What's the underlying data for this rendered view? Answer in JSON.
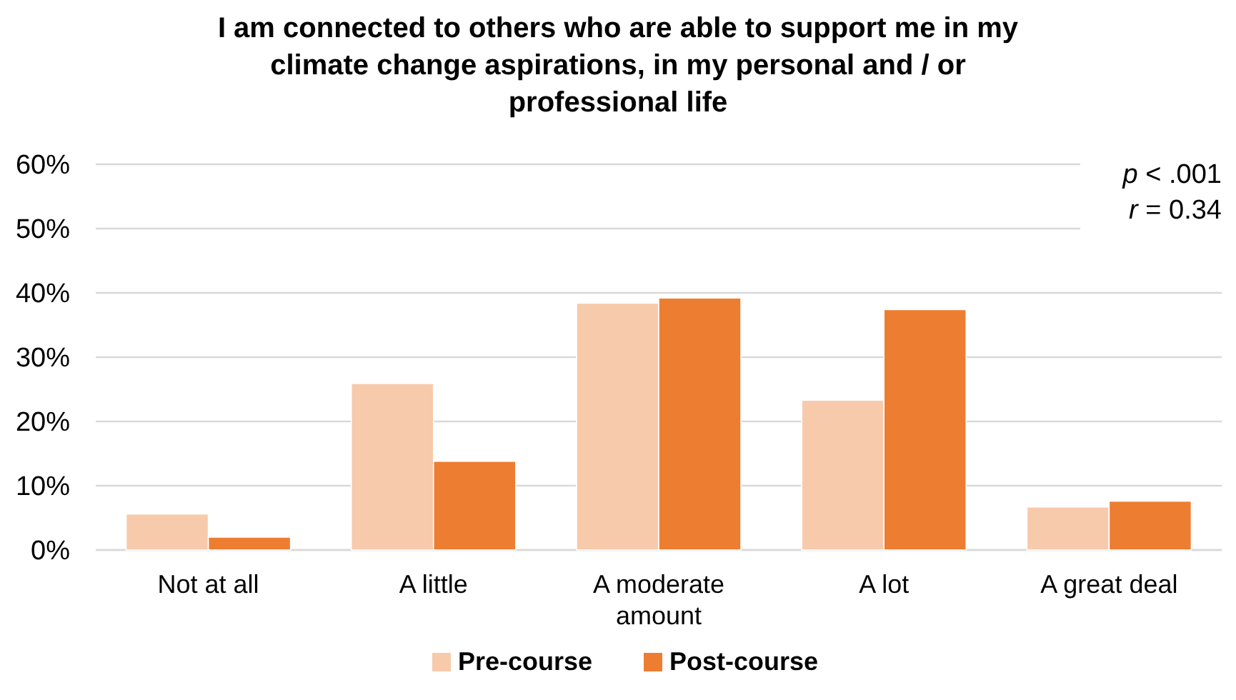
{
  "chart_data": {
    "type": "bar",
    "title": "I am connected to others who are able to support me in my climate change aspirations, in my personal and / or professional life",
    "categories": [
      "Not at all",
      "A little",
      "A moderate amount",
      "A lot",
      "A great deal"
    ],
    "series": [
      {
        "name": "Pre-course",
        "color": "#f7caac",
        "values": [
          5.6,
          25.9,
          38.4,
          23.3,
          6.7
        ]
      },
      {
        "name": "Post-course",
        "color": "#ed7d31",
        "values": [
          2.0,
          13.8,
          39.2,
          37.4,
          7.6
        ]
      }
    ],
    "ylim": [
      0,
      60
    ],
    "yticks": [
      {
        "value": 0,
        "label": "0%"
      },
      {
        "value": 10,
        "label": "10%"
      },
      {
        "value": 20,
        "label": "20%"
      },
      {
        "value": 30,
        "label": "30%"
      },
      {
        "value": 40,
        "label": "40%"
      },
      {
        "value": 50,
        "label": "50%"
      },
      {
        "value": 60,
        "label": "60%"
      }
    ],
    "grid": "y",
    "legend": "bottom",
    "annotations": [
      "p < .001",
      "r = 0.34"
    ]
  }
}
